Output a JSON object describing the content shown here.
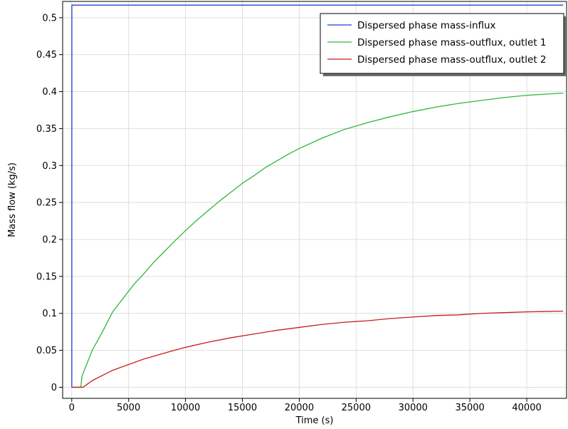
{
  "chart_data": {
    "type": "line",
    "title": "",
    "xlabel": "Time (s)",
    "ylabel": "Mass flow (kg/s)",
    "xlim": [
      -800,
      43500
    ],
    "ylim": [
      -0.015,
      0.522
    ],
    "xticks": [
      0,
      5000,
      10000,
      15000,
      20000,
      25000,
      30000,
      35000,
      40000
    ],
    "xtick_labels": [
      "0",
      "5000",
      "10000",
      "15000",
      "20000",
      "25000",
      "30000",
      "35000",
      "40000"
    ],
    "yticks": [
      0,
      0.05,
      0.1,
      0.15,
      0.2,
      0.25,
      0.3,
      0.35,
      0.4,
      0.45,
      0.5
    ],
    "ytick_labels": [
      "0",
      "0.05",
      "0.1",
      "0.15",
      "0.2",
      "0.25",
      "0.3",
      "0.35",
      "0.4",
      "0.45",
      "0.5"
    ],
    "grid": true,
    "legend_position": "top-right",
    "series": [
      {
        "name": "Dispersed phase mass-influx",
        "color": "#1f3fcc",
        "x": [
          0,
          5,
          10,
          43200
        ],
        "y": [
          0,
          0,
          0.517,
          0.517
        ]
      },
      {
        "name": "Dispersed phase mass-outflux, outlet 1",
        "color": "#2db83d",
        "x": [
          0,
          800,
          900,
          1800,
          2700,
          3600,
          4500,
          5400,
          6300,
          7200,
          8100,
          9000,
          10000,
          11000,
          12000,
          13000,
          14000,
          15000,
          16000,
          17000,
          18000,
          19000,
          20000,
          22000,
          24000,
          26000,
          28000,
          30000,
          32000,
          34000,
          36000,
          38000,
          40000,
          43200
        ],
        "y": [
          0,
          0,
          0.015,
          0.05,
          0.075,
          0.102,
          0.12,
          0.138,
          0.153,
          0.169,
          0.183,
          0.197,
          0.212,
          0.226,
          0.239,
          0.252,
          0.264,
          0.276,
          0.286,
          0.297,
          0.306,
          0.315,
          0.323,
          0.337,
          0.349,
          0.358,
          0.366,
          0.373,
          0.379,
          0.384,
          0.388,
          0.392,
          0.395,
          0.398
        ]
      },
      {
        "name": "Dispersed phase mass-outflux, outlet 2",
        "color": "#c81e1e",
        "x": [
          0,
          1000,
          1800,
          2700,
          3600,
          4500,
          5400,
          6300,
          7200,
          8100,
          9000,
          10000,
          12000,
          14000,
          16000,
          18000,
          20000,
          22000,
          24000,
          26000,
          28000,
          30000,
          32000,
          34000,
          36000,
          38000,
          40000,
          43200
        ],
        "y": [
          0,
          0,
          0.009,
          0.016,
          0.023,
          0.028,
          0.033,
          0.038,
          0.042,
          0.046,
          0.05,
          0.054,
          0.061,
          0.067,
          0.072,
          0.077,
          0.081,
          0.085,
          0.088,
          0.09,
          0.093,
          0.095,
          0.097,
          0.098,
          0.1,
          0.101,
          0.102,
          0.103
        ]
      }
    ]
  }
}
